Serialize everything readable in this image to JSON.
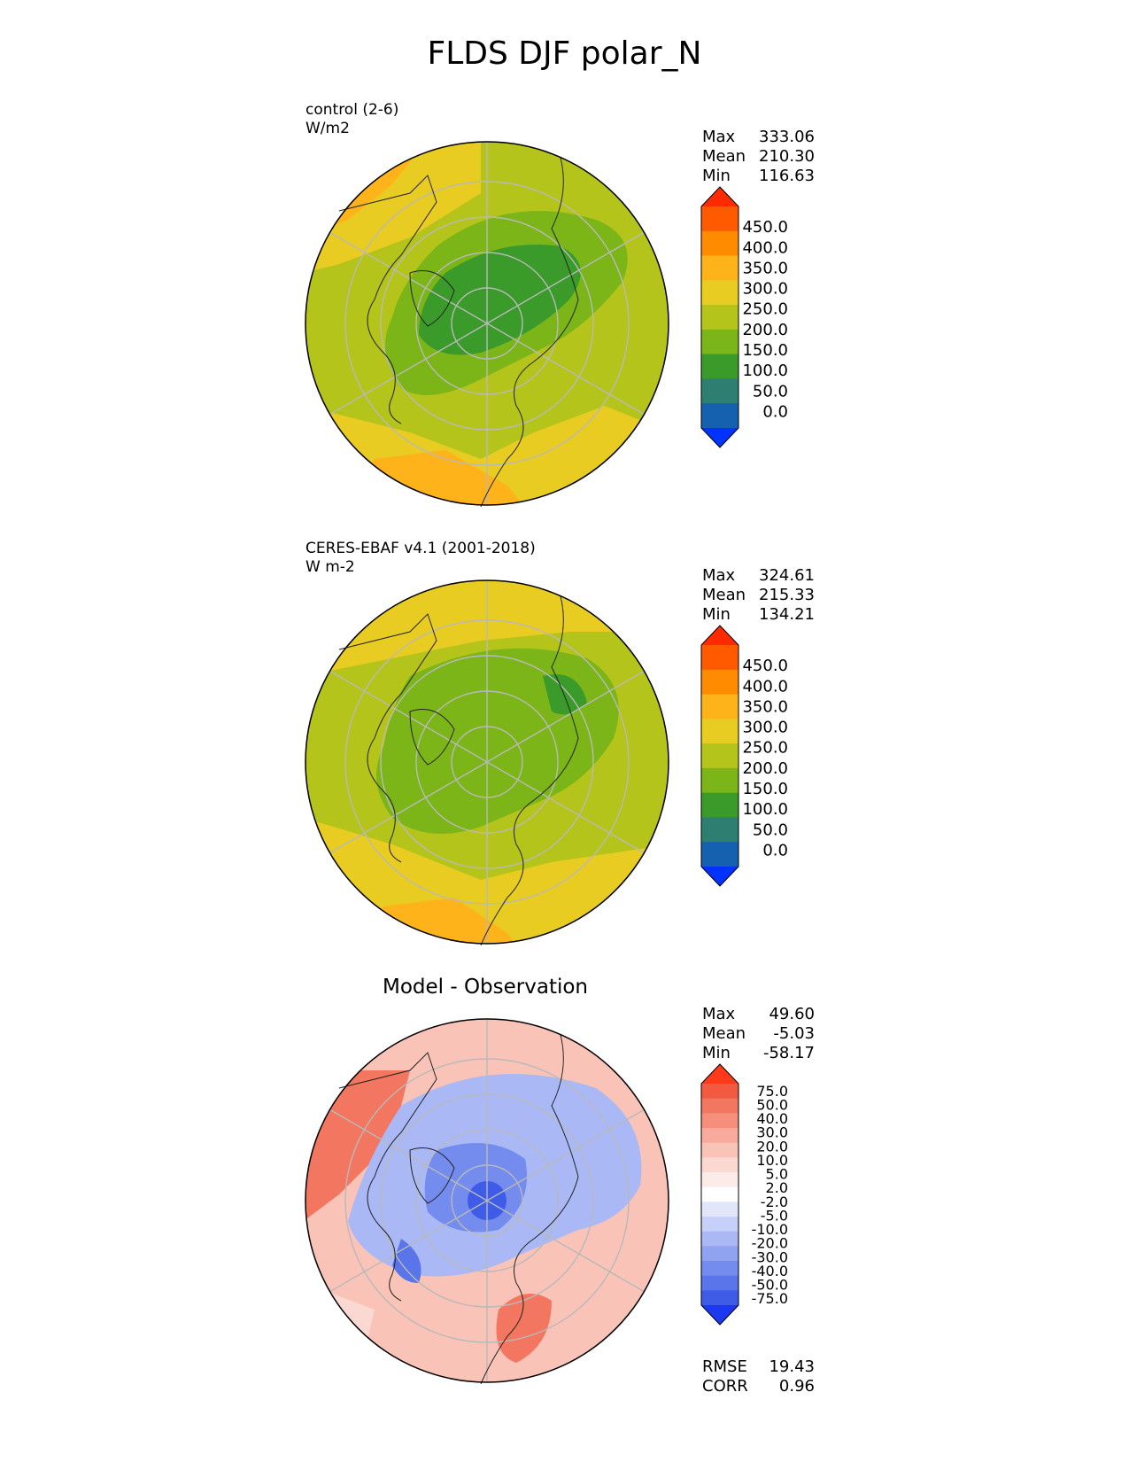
{
  "title": "FLDS DJF polar_N",
  "panels": [
    {
      "label1": "control (2-6)",
      "label2": "W/m2",
      "stats": [
        {
          "name": "Max",
          "value": "333.06"
        },
        {
          "name": "Mean",
          "value": "210.30"
        },
        {
          "name": "Min",
          "value": "116.63"
        }
      ],
      "colorbar": {
        "ticks": [
          "450.0",
          "400.0",
          "350.0",
          "300.0",
          "250.0",
          "200.0",
          "150.0",
          "100.0",
          "50.0",
          "0.0"
        ]
      }
    },
    {
      "label1": "CERES-EBAF v4.1 (2001-2018)",
      "label2": "W m-2",
      "stats": [
        {
          "name": "Max",
          "value": "324.61"
        },
        {
          "name": "Mean",
          "value": "215.33"
        },
        {
          "name": "Min",
          "value": "134.21"
        }
      ],
      "colorbar": {
        "ticks": [
          "450.0",
          "400.0",
          "350.0",
          "300.0",
          "250.0",
          "200.0",
          "150.0",
          "100.0",
          "50.0",
          "0.0"
        ]
      }
    },
    {
      "title": "Model - Observation",
      "stats": [
        {
          "name": "Max",
          "value": "49.60"
        },
        {
          "name": "Mean",
          "value": "-5.03"
        },
        {
          "name": "Min",
          "value": "-58.17"
        }
      ],
      "extra_stats": [
        {
          "name": "RMSE",
          "value": "19.43"
        },
        {
          "name": "CORR",
          "value": "0.96"
        }
      ],
      "colorbar": {
        "ticks": [
          "75.0",
          "50.0",
          "40.0",
          "30.0",
          "20.0",
          "10.0",
          "5.0",
          "2.0",
          "-2.0",
          "-5.0",
          "-10.0",
          "-20.0",
          "-30.0",
          "-40.0",
          "-50.0",
          "-75.0"
        ]
      }
    }
  ],
  "palettes": {
    "abs": [
      "#ff2a00",
      "#ff5a00",
      "#ff8c00",
      "#ffb31a",
      "#e8cc22",
      "#b5c41a",
      "#7cb518",
      "#3a9a2a",
      "#2e7f72",
      "#1660b0",
      "#0033ff"
    ],
    "diff": [
      "#ff3a1a",
      "#f25a40",
      "#f27660",
      "#f58f7c",
      "#f8ab9c",
      "#f9c3b8",
      "#fbd9d2",
      "#fbecea",
      "#ffffff",
      "#e1e6fb",
      "#c6d0f8",
      "#aab9f5",
      "#8fa3f1",
      "#748cee",
      "#5a74ea",
      "#3f5ce8",
      "#1c38f0"
    ]
  }
}
